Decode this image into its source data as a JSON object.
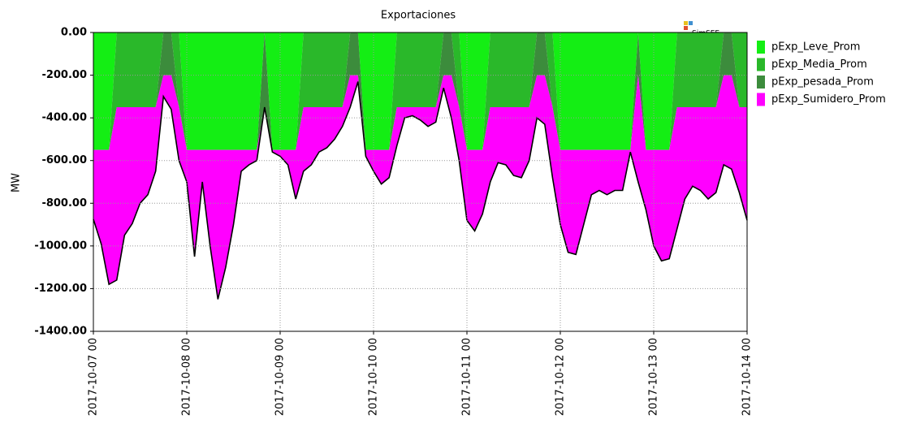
{
  "chart_data": {
    "type": "stacked-area",
    "title": "Exportaciones",
    "ylabel": "MW",
    "watermark": "SimSEE",
    "x": [
      "2017-10-07 00",
      "2017-10-07 02",
      "2017-10-07 04",
      "2017-10-07 06",
      "2017-10-07 08",
      "2017-10-07 10",
      "2017-10-07 12",
      "2017-10-07 14",
      "2017-10-07 16",
      "2017-10-07 18",
      "2017-10-07 20",
      "2017-10-07 22",
      "2017-10-08 00",
      "2017-10-08 02",
      "2017-10-08 04",
      "2017-10-08 06",
      "2017-10-08 08",
      "2017-10-08 10",
      "2017-10-08 12",
      "2017-10-08 14",
      "2017-10-08 16",
      "2017-10-08 18",
      "2017-10-08 20",
      "2017-10-08 22",
      "2017-10-09 00",
      "2017-10-09 02",
      "2017-10-09 04",
      "2017-10-09 06",
      "2017-10-09 08",
      "2017-10-09 10",
      "2017-10-09 12",
      "2017-10-09 14",
      "2017-10-09 16",
      "2017-10-09 18",
      "2017-10-09 20",
      "2017-10-09 22",
      "2017-10-10 00",
      "2017-10-10 02",
      "2017-10-10 04",
      "2017-10-10 06",
      "2017-10-10 08",
      "2017-10-10 10",
      "2017-10-10 12",
      "2017-10-10 14",
      "2017-10-10 16",
      "2017-10-10 18",
      "2017-10-10 20",
      "2017-10-10 22",
      "2017-10-11 00",
      "2017-10-11 02",
      "2017-10-11 04",
      "2017-10-11 06",
      "2017-10-11 08",
      "2017-10-11 10",
      "2017-10-11 12",
      "2017-10-11 14",
      "2017-10-11 16",
      "2017-10-11 18",
      "2017-10-11 20",
      "2017-10-11 22",
      "2017-10-12 00",
      "2017-10-12 02",
      "2017-10-12 04",
      "2017-10-12 06",
      "2017-10-12 08",
      "2017-10-12 10",
      "2017-10-12 12",
      "2017-10-12 14",
      "2017-10-12 16",
      "2017-10-12 18",
      "2017-10-12 20",
      "2017-10-12 22",
      "2017-10-13 00",
      "2017-10-13 02",
      "2017-10-13 04",
      "2017-10-13 06",
      "2017-10-13 08",
      "2017-10-13 10",
      "2017-10-13 12",
      "2017-10-13 14",
      "2017-10-13 16",
      "2017-10-13 18",
      "2017-10-13 20",
      "2017-10-13 22",
      "2017-10-14 00"
    ],
    "series": [
      {
        "name": "pExp_Leve_Prom",
        "color": "#14ee14",
        "values": [
          -550,
          -550,
          -550,
          0,
          0,
          0,
          0,
          0,
          0,
          0,
          0,
          0,
          -550,
          -550,
          -550,
          -550,
          -550,
          -550,
          -550,
          -550,
          -550,
          -550,
          0,
          -550,
          -550,
          -550,
          -550,
          0,
          0,
          0,
          0,
          0,
          0,
          0,
          0,
          -550,
          -550,
          -550,
          -550,
          0,
          0,
          0,
          0,
          0,
          0,
          0,
          0,
          0,
          -550,
          -550,
          -550,
          0,
          0,
          0,
          0,
          0,
          0,
          0,
          0,
          0,
          -550,
          -550,
          -550,
          -550,
          -550,
          -550,
          -550,
          -550,
          -550,
          -550,
          0,
          -550,
          -550,
          -550,
          -550,
          0,
          0,
          0,
          0,
          0,
          0,
          0,
          0,
          0,
          0
        ]
      },
      {
        "name": "pExp_Media_Prom",
        "color": "#2ab82a",
        "values": [
          0,
          0,
          0,
          -350,
          -350,
          -350,
          -350,
          -350,
          -350,
          0,
          0,
          -350,
          0,
          0,
          0,
          0,
          0,
          0,
          0,
          0,
          0,
          0,
          0,
          0,
          0,
          0,
          0,
          -350,
          -350,
          -350,
          -350,
          -350,
          -350,
          0,
          0,
          0,
          0,
          0,
          0,
          -350,
          -350,
          -350,
          -350,
          -350,
          -350,
          0,
          0,
          -350,
          0,
          0,
          0,
          -350,
          -350,
          -350,
          -350,
          -350,
          -350,
          0,
          0,
          -350,
          0,
          0,
          0,
          0,
          0,
          0,
          0,
          0,
          0,
          0,
          0,
          0,
          0,
          0,
          0,
          -350,
          -350,
          -350,
          -350,
          -350,
          -350,
          0,
          0,
          -350,
          -350
        ]
      },
      {
        "name": "pExp_pesada_Prom",
        "color": "#3c8c3c",
        "values": [
          0,
          0,
          0,
          0,
          0,
          0,
          0,
          0,
          0,
          -200,
          -200,
          0,
          0,
          0,
          0,
          0,
          0,
          0,
          0,
          0,
          0,
          0,
          -350,
          0,
          0,
          0,
          0,
          0,
          0,
          0,
          0,
          0,
          0,
          -200,
          -200,
          0,
          0,
          0,
          0,
          0,
          0,
          0,
          0,
          0,
          0,
          -200,
          -200,
          0,
          0,
          0,
          0,
          0,
          0,
          0,
          0,
          0,
          0,
          -200,
          -200,
          0,
          0,
          0,
          0,
          0,
          0,
          0,
          0,
          0,
          0,
          0,
          -200,
          0,
          0,
          0,
          0,
          0,
          0,
          0,
          0,
          0,
          0,
          -200,
          -200,
          0,
          0
        ]
      },
      {
        "name": "pExp_Sumidero_Prom",
        "color": "#ff00ff",
        "values": [
          -325,
          -440,
          -630,
          -810,
          -600,
          -545,
          -450,
          -410,
          -300,
          -100,
          -160,
          -250,
          -150,
          -500,
          -150,
          -450,
          -700,
          -550,
          -350,
          -100,
          -70,
          -50,
          0,
          -10,
          -30,
          -70,
          -230,
          -300,
          -270,
          -210,
          -190,
          -150,
          -90,
          -150,
          -30,
          -30,
          -100,
          -160,
          -130,
          -180,
          -50,
          -40,
          -60,
          -90,
          -70,
          -60,
          -200,
          -250,
          -330,
          -380,
          -300,
          -350,
          -260,
          -270,
          -320,
          -330,
          -250,
          -200,
          -230,
          -330,
          -350,
          -480,
          -490,
          -350,
          -210,
          -190,
          -210,
          -190,
          -190,
          -10,
          -500,
          -280,
          -450,
          -520,
          -510,
          -570,
          -430,
          -370,
          -390,
          -430,
          -400,
          -420,
          -440,
          -400,
          -530
        ]
      }
    ],
    "xlim": [
      "2017-10-07 00",
      "2017-10-14 00"
    ],
    "xticks": [
      "2017-10-07 00",
      "2017-10-08 00",
      "2017-10-09 00",
      "2017-10-10 00",
      "2017-10-11 00",
      "2017-10-12 00",
      "2017-10-13 00",
      "2017-10-14 00"
    ],
    "ylim": [
      -1400,
      0
    ],
    "yticks": [
      {
        "value": 0,
        "label": "0.00"
      },
      {
        "value": -200,
        "label": "-200.00"
      },
      {
        "value": -400,
        "label": "-400.00"
      },
      {
        "value": -600,
        "label": "-600.00"
      },
      {
        "value": -800,
        "label": "-800.00"
      },
      {
        "value": -1000,
        "label": "-1000.00"
      },
      {
        "value": -1200,
        "label": "-1200.00"
      },
      {
        "value": -1400,
        "label": "-1400.00"
      }
    ],
    "grid": true,
    "legend": "right"
  }
}
